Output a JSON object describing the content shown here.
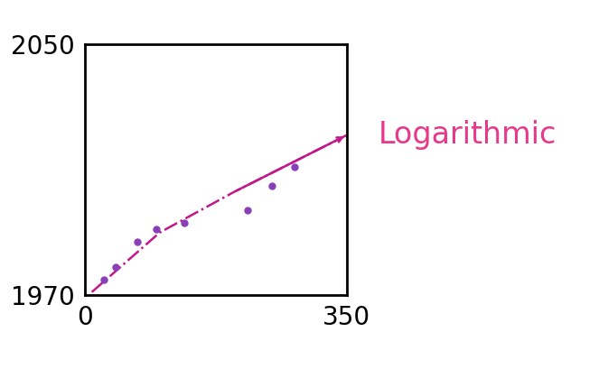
{
  "chart_data": {
    "type": "scatter",
    "xlim": [
      0,
      350
    ],
    "xticks": [
      0,
      350
    ],
    "ylim": [
      1970,
      2050
    ],
    "yticks": [
      1970,
      2050
    ],
    "grid": false,
    "series": [
      {
        "type": "scatter",
        "color": "#8a3fb8",
        "marker": "o",
        "x": [
          25,
          41,
          70,
          95,
          133,
          218,
          250,
          280
        ],
        "values": [
          1975,
          1979,
          1987,
          1991,
          1993,
          1997,
          2005,
          2011
        ]
      },
      {
        "type": "line",
        "color": "#c2188a",
        "line_style": "dashdot",
        "x": [
          9,
          100,
          200,
          350
        ],
        "values": [
          1971,
          1990,
          2003,
          2021
        ]
      }
    ],
    "annotations": [
      {
        "text": "Logarithmic",
        "color": "#e8388a"
      }
    ]
  }
}
